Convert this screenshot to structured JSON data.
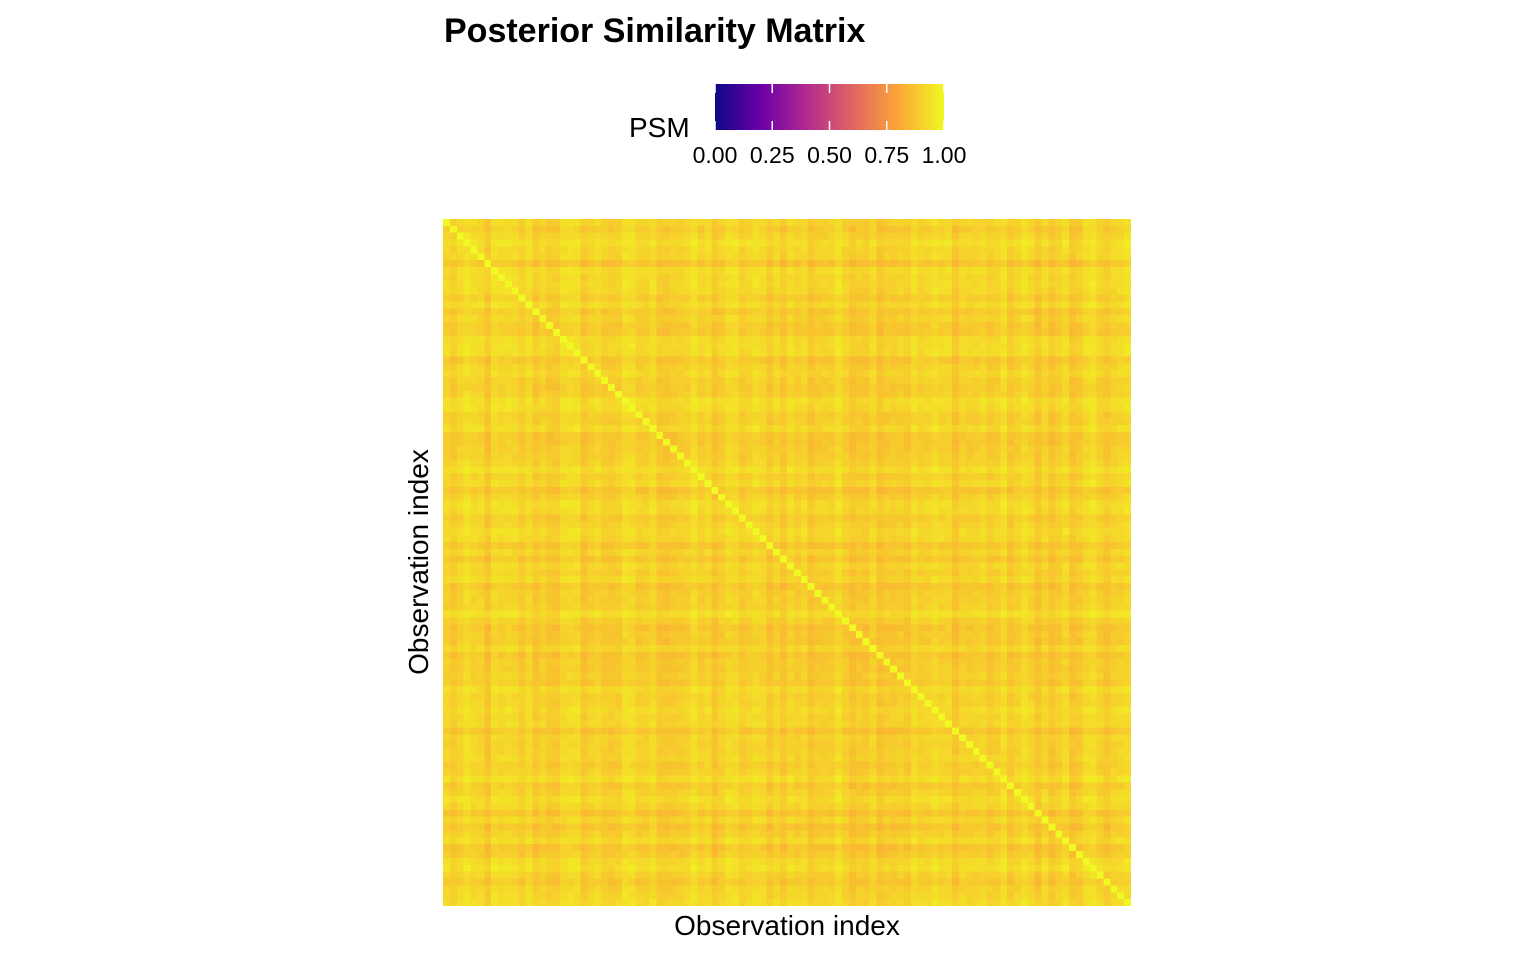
{
  "chart_data": {
    "type": "heatmap",
    "title": "Posterior Similarity Matrix",
    "xlabel": "Observation index",
    "ylabel": "Observation index",
    "n_observations": 100,
    "diagonal_value": 1.0,
    "off_diagonal_range": [
      0.8,
      0.98
    ],
    "x_ticks_shown": false,
    "y_ticks_shown": false,
    "grid": false,
    "legend": {
      "title": "PSM",
      "position": "top",
      "range": [
        0,
        1
      ],
      "ticks": [
        "0.00",
        "0.25",
        "0.50",
        "0.75",
        "1.00"
      ],
      "colormap": "plasma",
      "colors": [
        "#0d0887",
        "#6a00a8",
        "#b12a90",
        "#e16462",
        "#fca636",
        "#f0f921"
      ]
    }
  }
}
